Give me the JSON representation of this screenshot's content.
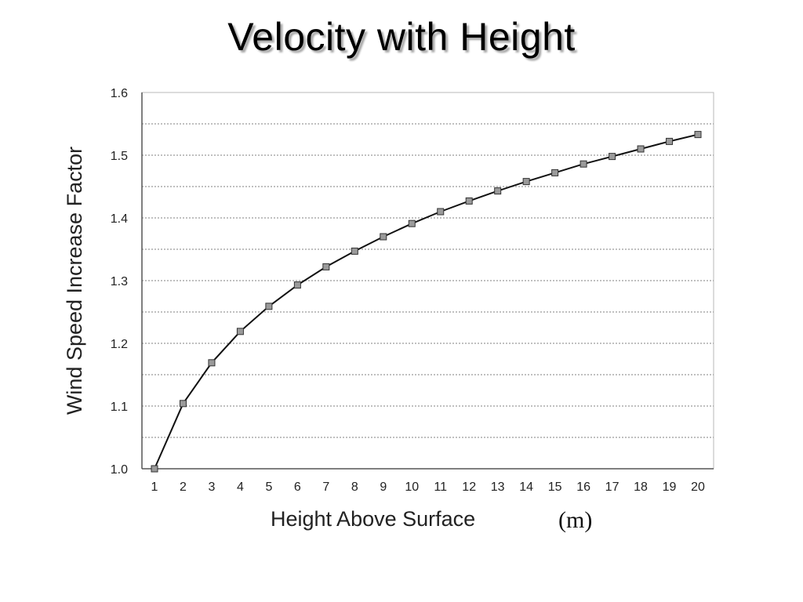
{
  "slide": {
    "title": "Velocity with Height"
  },
  "chart_data": {
    "type": "line",
    "title": "",
    "xlabel": "Height Above Surface",
    "xlabel_unit": "(m)",
    "ylabel": "Wind Speed Increase Factor",
    "x": [
      1,
      2,
      3,
      4,
      5,
      6,
      7,
      8,
      9,
      10,
      11,
      12,
      13,
      14,
      15,
      16,
      17,
      18,
      19,
      20
    ],
    "x_tick_labels": [
      "1",
      "2",
      "3",
      "4",
      "5",
      "6",
      "7",
      "8",
      "9",
      "10",
      "11",
      "12",
      "13",
      "14",
      "15",
      "16",
      "17",
      "18",
      "19",
      "20"
    ],
    "y_tick_labels": [
      "1.0",
      "1.1",
      "1.2",
      "1.3",
      "1.4",
      "1.5",
      "1.6"
    ],
    "y_ticks": [
      1.0,
      1.1,
      1.2,
      1.3,
      1.4,
      1.5,
      1.6
    ],
    "series": [
      {
        "values": [
          1.0,
          1.104,
          1.169,
          1.219,
          1.259,
          1.293,
          1.322,
          1.347,
          1.37,
          1.391,
          1.41,
          1.427,
          1.443,
          1.458,
          1.472,
          1.486,
          1.498,
          1.51,
          1.522,
          1.533
        ],
        "marker": "square"
      }
    ],
    "ylim": [
      1.0,
      1.6
    ],
    "grid": "horizontal-dotted",
    "legend": "none",
    "colors": {
      "line": "#111111",
      "marker_fill": "#9a9a9a",
      "marker_stroke": "#333333",
      "grid": "#9a9a9a",
      "frame": "#b8b8b8"
    }
  }
}
